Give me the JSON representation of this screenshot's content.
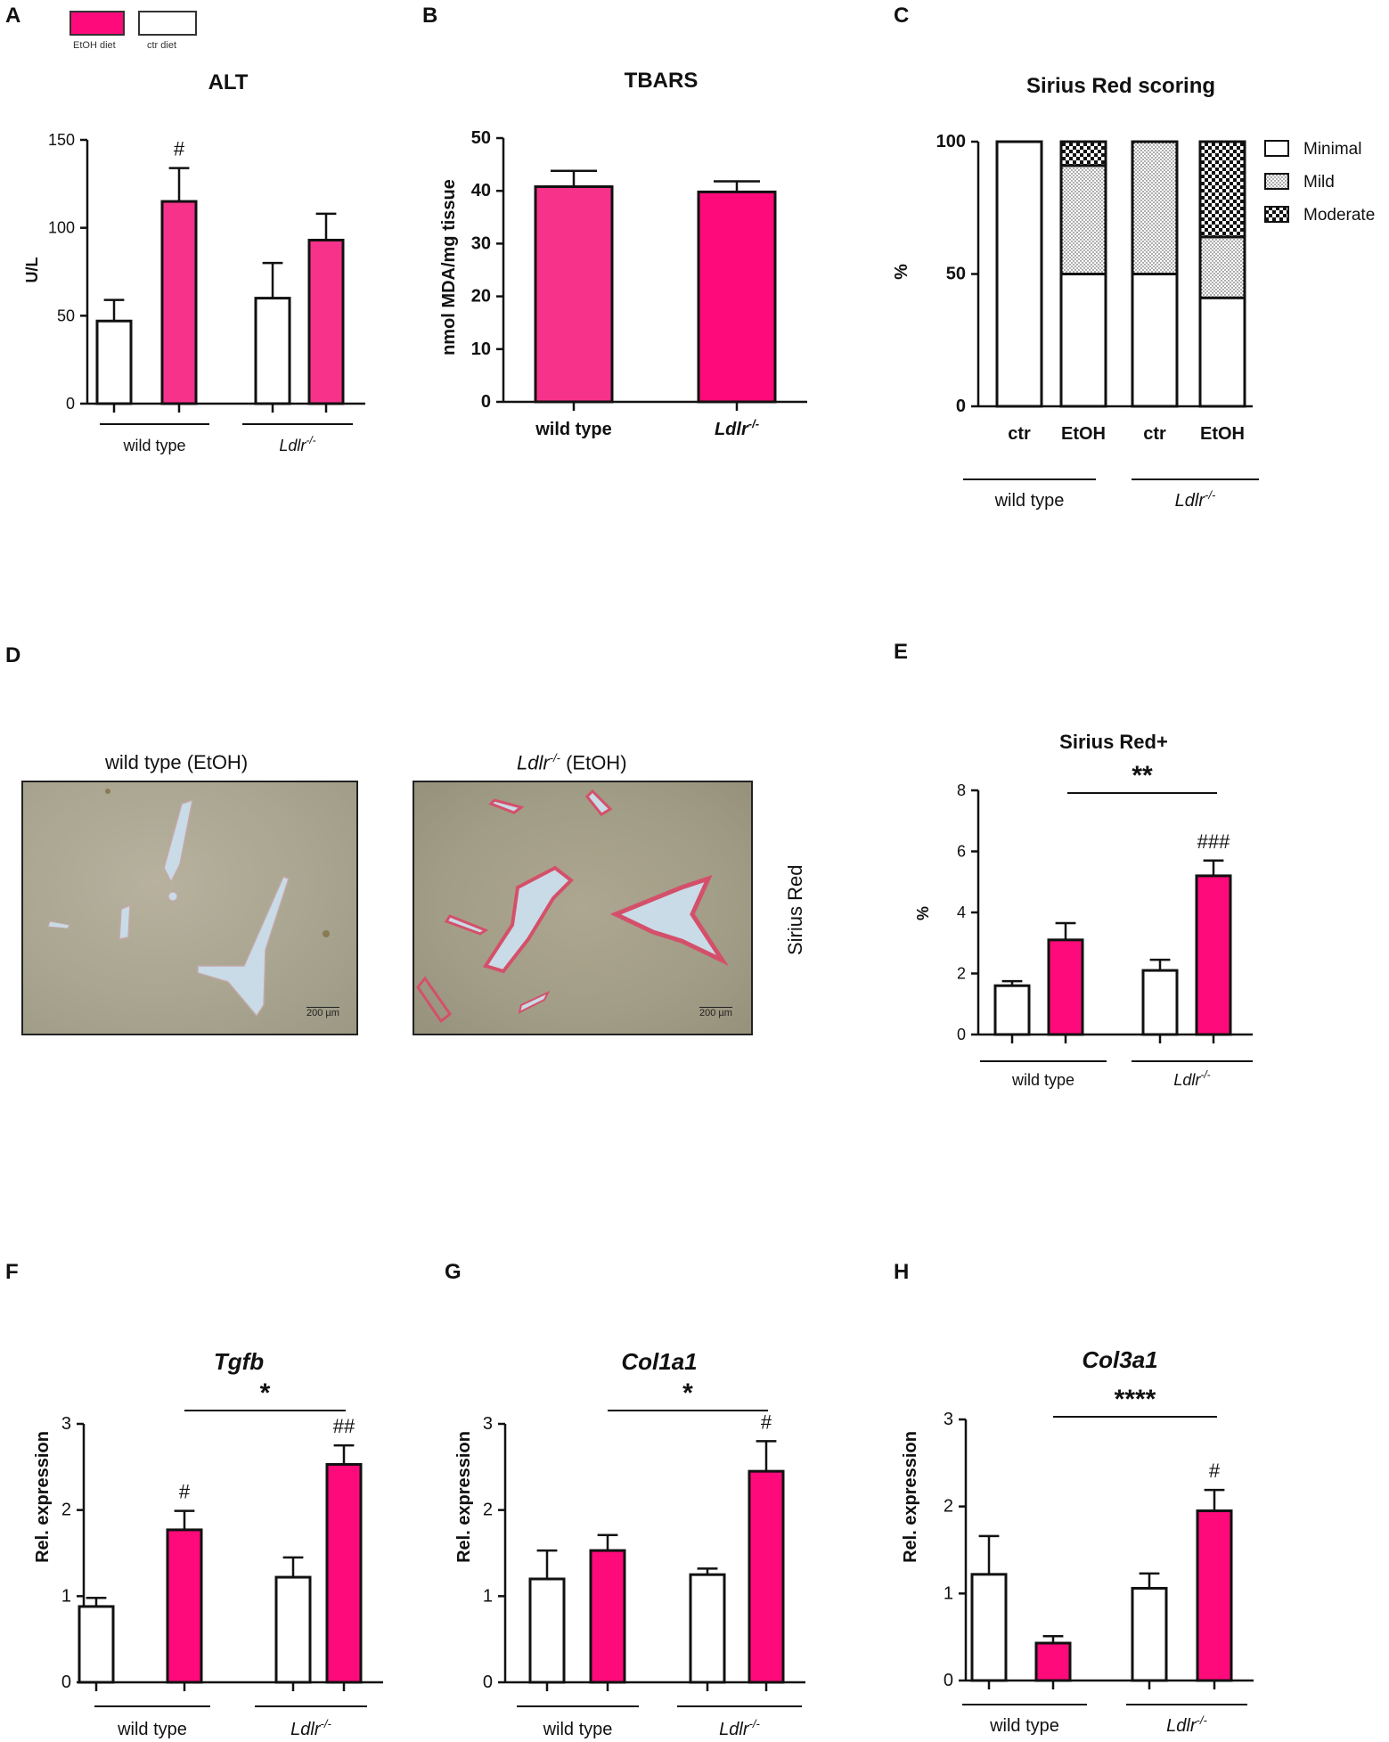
{
  "colors": {
    "etoh": "#ff0a7a",
    "etoh_light": "#f7328a",
    "ctr": "#ffffff",
    "ink": "#111111"
  },
  "panel_letters": [
    "A",
    "B",
    "C",
    "D",
    "E",
    "F",
    "G",
    "H"
  ],
  "top_legend": {
    "etoh_label": "EtOH diet",
    "ctr_label": "ctr diet"
  },
  "micrographs": {
    "left_title": "wild type (EtOH)",
    "right_title_italic": "Ldlr",
    "right_title_sup": "-/-",
    "right_title_rest": " (EtOH)",
    "scale_bar": "200 µm",
    "side_label": "Sirius Red"
  },
  "chart_data": [
    {
      "id": "A",
      "type": "bar",
      "title": "ALT",
      "ylabel": "U/L",
      "ylim": [
        0,
        150
      ],
      "yticks": [
        0,
        50,
        100,
        150
      ],
      "series": [
        {
          "name": "ctr diet",
          "values": [
            47,
            60
          ],
          "errors": [
            12,
            20
          ]
        },
        {
          "name": "EtOH diet",
          "values": [
            115,
            93
          ],
          "errors": [
            19,
            15
          ]
        }
      ],
      "groups": [
        "wild type",
        "Ldlr -/-"
      ],
      "annotations": [
        {
          "text": "#",
          "target": "wild type EtOH"
        }
      ]
    },
    {
      "id": "B",
      "type": "bar",
      "title": "TBARS",
      "ylabel": "nmol MDA/mg tissue",
      "ylim": [
        0,
        50
      ],
      "yticks": [
        0,
        10,
        20,
        30,
        40,
        50
      ],
      "categories": [
        "wild type",
        "Ldlr -/-"
      ],
      "values": [
        40.8,
        39.8
      ],
      "errors": [
        3,
        2
      ]
    },
    {
      "id": "C",
      "type": "bar",
      "title": "Sirius Red scoring",
      "ylabel": "%",
      "ylim": [
        0,
        100
      ],
      "yticks": [
        0,
        50,
        100
      ],
      "categories": [
        "ctr",
        "EtOH",
        "ctr",
        "EtOH"
      ],
      "groups": [
        "wild type",
        "Ldlr -/-"
      ],
      "series": [
        {
          "name": "Minimal",
          "values": [
            100,
            50,
            50,
            41
          ]
        },
        {
          "name": "Mild",
          "values": [
            0,
            41,
            50,
            23
          ]
        },
        {
          "name": "Moderate",
          "values": [
            0,
            9,
            0,
            36
          ]
        }
      ],
      "legend": "right"
    },
    {
      "id": "E",
      "type": "bar",
      "title": "Sirius Red+",
      "ylabel": "%",
      "ylim": [
        0,
        8
      ],
      "yticks": [
        0,
        2,
        4,
        6,
        8
      ],
      "series": [
        {
          "name": "ctr diet",
          "values": [
            1.6,
            2.1
          ],
          "errors": [
            0.15,
            0.35
          ]
        },
        {
          "name": "EtOH diet",
          "values": [
            3.1,
            5.2
          ],
          "errors": [
            0.55,
            0.5
          ]
        }
      ],
      "groups": [
        "wild type",
        "Ldlr -/-"
      ],
      "annotations": [
        {
          "text": "**",
          "type": "bracket"
        },
        {
          "text": "###",
          "target": "Ldlr -/- EtOH"
        }
      ]
    },
    {
      "id": "F",
      "type": "bar",
      "title": "Tgfb",
      "ylabel": "Rel. expression",
      "ylim": [
        0,
        3
      ],
      "yticks": [
        0,
        1,
        2,
        3
      ],
      "series": [
        {
          "name": "ctr diet",
          "values": [
            0.88,
            1.22
          ],
          "errors": [
            0.1,
            0.23
          ]
        },
        {
          "name": "EtOH diet",
          "values": [
            1.77,
            2.53
          ],
          "errors": [
            0.22,
            0.22
          ]
        }
      ],
      "groups": [
        "wild type",
        "Ldlr -/-"
      ],
      "annotations": [
        {
          "text": "*",
          "type": "bracket"
        },
        {
          "text": "#",
          "target": "wild type EtOH"
        },
        {
          "text": "##",
          "target": "Ldlr -/- EtOH"
        }
      ]
    },
    {
      "id": "G",
      "type": "bar",
      "title": "Col1a1",
      "ylabel": "Rel. expression",
      "ylim": [
        0,
        3
      ],
      "yticks": [
        0,
        1,
        2,
        3
      ],
      "series": [
        {
          "name": "ctr diet",
          "values": [
            1.2,
            1.25
          ],
          "errors": [
            0.33,
            0.07
          ]
        },
        {
          "name": "EtOH diet",
          "values": [
            1.53,
            2.45
          ],
          "errors": [
            0.18,
            0.35
          ]
        }
      ],
      "groups": [
        "wild type",
        "Ldlr -/-"
      ],
      "annotations": [
        {
          "text": "*",
          "type": "bracket"
        },
        {
          "text": "#",
          "target": "Ldlr -/- EtOH"
        }
      ]
    },
    {
      "id": "H",
      "type": "bar",
      "title": "Col3a1",
      "ylabel": "Rel. expression",
      "ylim": [
        0,
        3
      ],
      "yticks": [
        0,
        1,
        2,
        3
      ],
      "series": [
        {
          "name": "ctr diet",
          "values": [
            1.22,
            1.06
          ],
          "errors": [
            0.44,
            0.17
          ]
        },
        {
          "name": "EtOH diet",
          "values": [
            0.43,
            1.95
          ],
          "errors": [
            0.08,
            0.24
          ]
        }
      ],
      "groups": [
        "wild type",
        "Ldlr -/-"
      ],
      "annotations": [
        {
          "text": "****",
          "type": "bracket"
        },
        {
          "text": "#",
          "target": "Ldlr -/- EtOH"
        }
      ]
    }
  ]
}
